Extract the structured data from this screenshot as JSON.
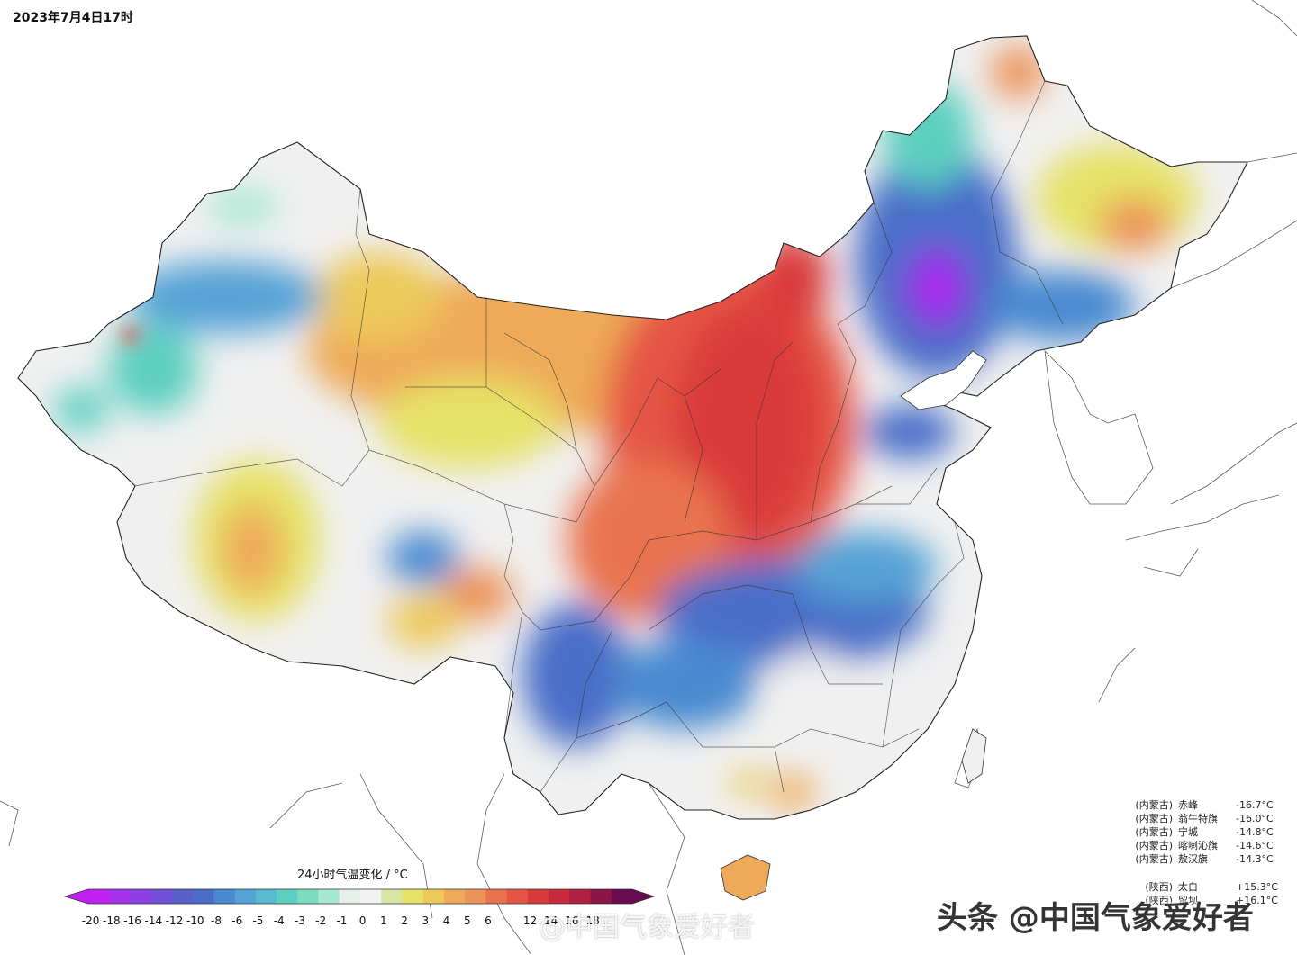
{
  "timestamp": "2023年7月4日17时",
  "legend": {
    "title": "24小时气温变化 / °C",
    "ticks": [
      "-20",
      "-18",
      "-16",
      "-14",
      "-12",
      "-10",
      "-8",
      "-6",
      "-5",
      "-4",
      "-3",
      "-2",
      "-1",
      "0",
      "1",
      "2",
      "3",
      "4",
      "5",
      "6",
      "",
      "12",
      "14",
      "16",
      "18",
      ""
    ],
    "colors": [
      "#c020f0",
      "#a531ea",
      "#8b3ee2",
      "#7050d8",
      "#5b5fcc",
      "#4a6ec8",
      "#4a8ad0",
      "#55a2d5",
      "#5cb8cf",
      "#5ccfc0",
      "#7cdcbf",
      "#a8e8d3",
      "#e8eee9",
      "#f2f2f2",
      "#d8e8a4",
      "#e6e268",
      "#edc95a",
      "#eeaa58",
      "#ec9358",
      "#e9734f",
      "#e55545",
      "#d93a3a",
      "#c62a3c",
      "#b02040",
      "#8c1448",
      "#6a0a50"
    ]
  },
  "stations_cold": [
    {
      "province": "(内蒙古)",
      "name": "赤峰",
      "value": "-16.7°C"
    },
    {
      "province": "(内蒙古)",
      "name": "翁牛特旗",
      "value": "-16.0°C"
    },
    {
      "province": "(内蒙古)",
      "name": "宁城",
      "value": "-14.8°C"
    },
    {
      "province": "(内蒙古)",
      "name": "喀喇沁旗",
      "value": "-14.6°C"
    },
    {
      "province": "(内蒙古)",
      "name": "敖汉旗",
      "value": "-14.3°C"
    }
  ],
  "stations_hot": [
    {
      "province": "(陕西)",
      "name": "太白",
      "value": "+15.3°C"
    },
    {
      "province": "",
      "name": "",
      "value": ""
    },
    {
      "province": "",
      "name": "",
      "value": ""
    },
    {
      "province": "",
      "name": "",
      "value": ""
    },
    {
      "province": "(陕西)",
      "name": "留坝",
      "value": "+16.1°C"
    }
  ],
  "watermark": "头条 @中国气象爱好者",
  "watermark_small": "@中国气象爱好者"
}
